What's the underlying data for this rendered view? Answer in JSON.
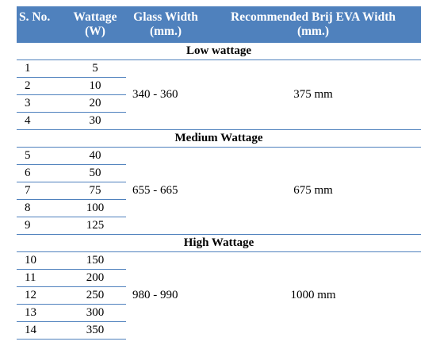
{
  "headers": {
    "sno": "S. No.",
    "wattage_line1": "Wattage",
    "wattage_line2": "(W)",
    "glass_line1": "Glass Width",
    "glass_line2": "(mm.)",
    "eva_line1": "Recommended Brij EVA Width",
    "eva_line2": "(mm.)"
  },
  "sections": [
    {
      "title": "Low wattage",
      "glass_width": "340 - 360",
      "eva_width": "375 mm",
      "rows": [
        {
          "sno": "1",
          "watt": "5"
        },
        {
          "sno": "2",
          "watt": "10"
        },
        {
          "sno": "3",
          "watt": "20"
        },
        {
          "sno": "4",
          "watt": "30"
        }
      ]
    },
    {
      "title": "Medium Wattage",
      "glass_width": "655 - 665",
      "eva_width": "675 mm",
      "rows": [
        {
          "sno": "5",
          "watt": "40"
        },
        {
          "sno": "6",
          "watt": "50"
        },
        {
          "sno": "7",
          "watt": "75"
        },
        {
          "sno": "8",
          "watt": "100"
        },
        {
          "sno": "9",
          "watt": "125"
        }
      ]
    },
    {
      "title": "High Wattage",
      "glass_width": "980 - 990",
      "eva_width": "1000 mm",
      "rows": [
        {
          "sno": "10",
          "watt": "150"
        },
        {
          "sno": "11",
          "watt": "200"
        },
        {
          "sno": "12",
          "watt": "250"
        },
        {
          "sno": "13",
          "watt": "300"
        },
        {
          "sno": "14",
          "watt": "350"
        }
      ]
    }
  ],
  "colors": {
    "header_bg": "#4f81bd",
    "header_text": "#ffffff",
    "rule": "#4f81bd"
  }
}
